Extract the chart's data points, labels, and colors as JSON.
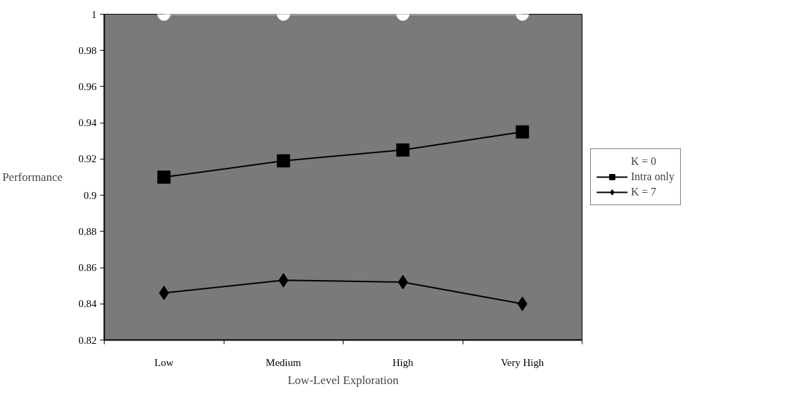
{
  "chart_data": {
    "type": "line",
    "xlabel": "Low-Level Exploration",
    "ylabel": "Performance",
    "categories": [
      "Low",
      "Medium",
      "High",
      "Very High"
    ],
    "series": [
      {
        "name": "K = 0",
        "color": "#ffffff",
        "marker": "circle",
        "values": [
          1,
          1,
          1,
          1
        ]
      },
      {
        "name": "Intra only",
        "color": "#000000",
        "marker": "square",
        "values": [
          0.91,
          0.919,
          0.925,
          0.935
        ]
      },
      {
        "name": "K = 7",
        "color": "#000000",
        "marker": "diamond",
        "values": [
          0.846,
          0.853,
          0.852,
          0.84
        ]
      }
    ],
    "ylim": [
      0.82,
      1
    ],
    "yticks": [
      0.82,
      0.84,
      0.86,
      0.88,
      0.9,
      0.92,
      0.94,
      0.96,
      0.98,
      1
    ],
    "grid": false,
    "legend": "right",
    "line_style": "solid"
  }
}
